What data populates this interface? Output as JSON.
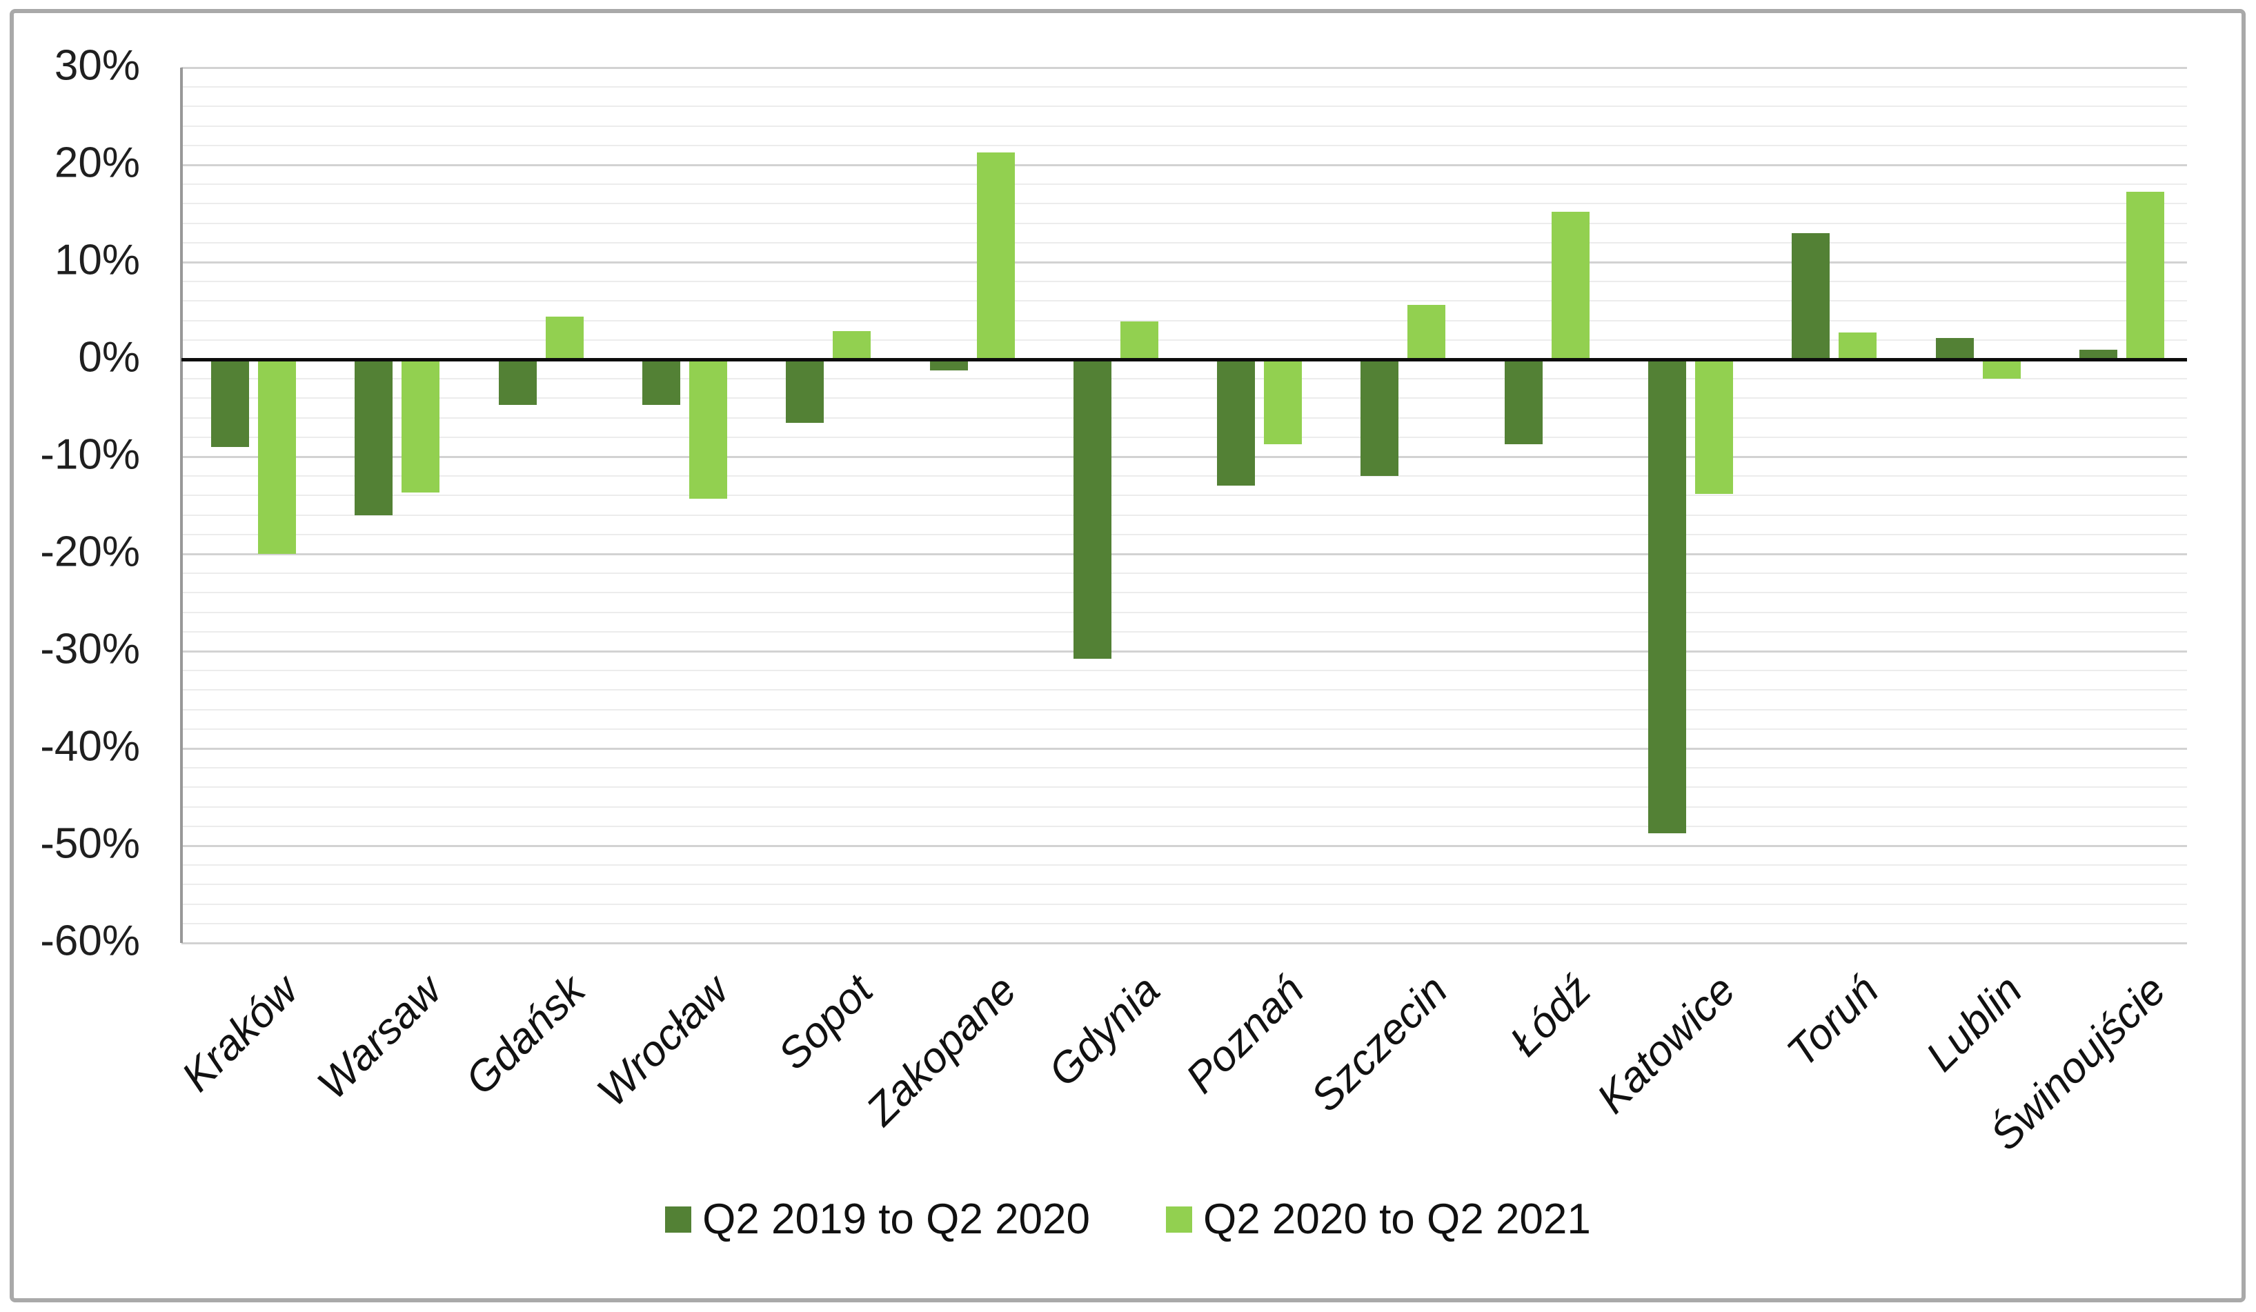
{
  "chart_data": {
    "type": "bar",
    "title": "",
    "categories": [
      "Kraków",
      "Warsaw",
      "Gdańsk",
      "Wrocław",
      "Sopot",
      "Zakopane",
      "Gdynia",
      "Poznań",
      "Szczecin",
      "Łódź",
      "Katowice",
      "Toruń",
      "Lublin",
      "Świnoujście"
    ],
    "series": [
      {
        "name": "Q2 2019 to Q2 2020",
        "color": "#538135",
        "values": [
          -9.0,
          -16.0,
          -4.7,
          -4.7,
          -6.5,
          -1.1,
          -30.8,
          -13.0,
          -12.0,
          -8.7,
          -48.7,
          13.0,
          2.2,
          1.0
        ]
      },
      {
        "name": "Q2 2020 to Q2 2021",
        "color": "#92d050",
        "values": [
          -20.0,
          -13.7,
          4.4,
          -14.3,
          2.9,
          21.3,
          3.9,
          -8.7,
          5.6,
          15.2,
          -13.8,
          2.8,
          -2.0,
          17.2
        ]
      }
    ],
    "xlabel": "",
    "ylabel": "",
    "y_axis": {
      "min": -60,
      "max": 30,
      "major_step": 10,
      "minor_step": 2,
      "tick_values": [
        30,
        20,
        10,
        0,
        -10,
        -20,
        -30,
        -40,
        -50,
        -60
      ],
      "tick_labels": [
        "30%",
        "20%",
        "10%",
        "0%",
        "-10%",
        "-20%",
        "-30%",
        "-40%",
        "-50%",
        "-60%"
      ],
      "grid": true
    },
    "legend_position": "bottom"
  },
  "colors": {
    "background": "#ffffff",
    "frame_border": "#a9a9a9",
    "grid_major": "#d2d2d2",
    "grid_minor": "#ececec",
    "zero_line": "#0d0d0d",
    "y_axis_line": "#989898",
    "text": "#1f1f1f"
  }
}
